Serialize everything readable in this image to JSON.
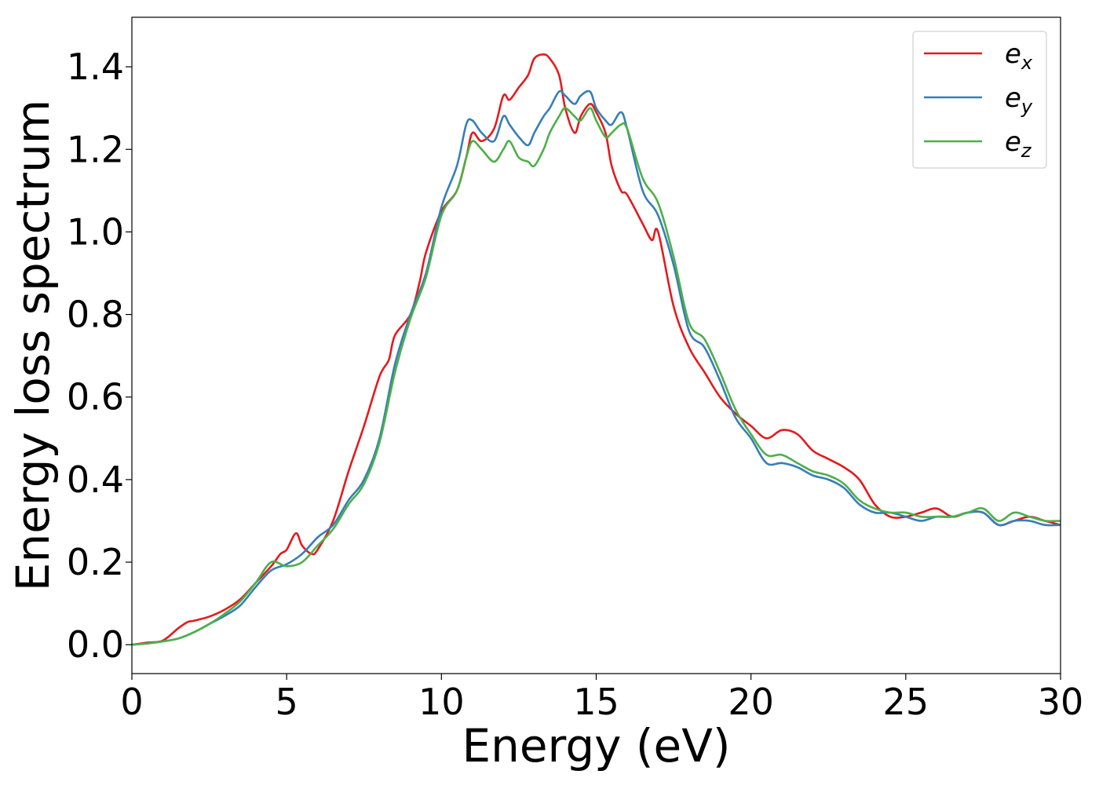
{
  "chart_data": {
    "type": "line",
    "title": "",
    "xlabel": "Energy (eV)",
    "ylabel": "Energy loss spectrum",
    "xlim": [
      0,
      30
    ],
    "ylim": [
      -0.07,
      1.52
    ],
    "xticks": [
      0,
      5,
      10,
      15,
      20,
      25,
      30
    ],
    "xtick_labels": [
      "0",
      "5",
      "10",
      "15",
      "20",
      "25",
      "30"
    ],
    "yticks": [
      0.0,
      0.2,
      0.4,
      0.6,
      0.8,
      1.0,
      1.2,
      1.4
    ],
    "ytick_labels": [
      "0.0",
      "0.2",
      "0.4",
      "0.6",
      "0.8",
      "1.0",
      "1.2",
      "1.4"
    ],
    "grid": false,
    "legend_position": "top-right",
    "series": [
      {
        "name": "e_x",
        "legend_base": "e",
        "legend_sub": "x",
        "color": "#e41a1c",
        "x": [
          0,
          0.5,
          1,
          1.5,
          1.8,
          2,
          2.5,
          3,
          3.5,
          4,
          4.5,
          4.8,
          5,
          5.3,
          5.5,
          5.8,
          6,
          6.5,
          7,
          7.5,
          8,
          8.3,
          8.5,
          9,
          9.3,
          9.5,
          10,
          10.5,
          10.8,
          11,
          11.3,
          11.7,
          12,
          12.2,
          12.5,
          12.8,
          13,
          13.3,
          13.5,
          13.8,
          14,
          14.3,
          14.5,
          14.8,
          15,
          15.3,
          15.5,
          15.8,
          16,
          16.5,
          16.8,
          17,
          17.5,
          18,
          18.5,
          19,
          19.5,
          20,
          20.5,
          21,
          21.5,
          22,
          22.5,
          23,
          23.5,
          24,
          24.5,
          25,
          25.5,
          26,
          26.5,
          27,
          27.5,
          28,
          28.5,
          29,
          29.5,
          30
        ],
        "y": [
          0.0,
          0.005,
          0.01,
          0.04,
          0.055,
          0.058,
          0.068,
          0.085,
          0.11,
          0.15,
          0.19,
          0.22,
          0.23,
          0.27,
          0.24,
          0.22,
          0.23,
          0.3,
          0.42,
          0.53,
          0.65,
          0.69,
          0.75,
          0.8,
          0.88,
          0.95,
          1.05,
          1.1,
          1.18,
          1.24,
          1.22,
          1.25,
          1.33,
          1.32,
          1.35,
          1.38,
          1.42,
          1.43,
          1.42,
          1.38,
          1.3,
          1.24,
          1.28,
          1.31,
          1.29,
          1.24,
          1.16,
          1.1,
          1.09,
          1.02,
          0.98,
          1.0,
          0.82,
          0.72,
          0.66,
          0.6,
          0.56,
          0.53,
          0.5,
          0.52,
          0.51,
          0.47,
          0.45,
          0.43,
          0.4,
          0.34,
          0.31,
          0.31,
          0.32,
          0.33,
          0.31,
          0.32,
          0.32,
          0.29,
          0.3,
          0.31,
          0.3,
          0.29
        ]
      },
      {
        "name": "e_y",
        "legend_base": "e",
        "legend_sub": "y",
        "color": "#377eb8",
        "x": [
          0,
          0.5,
          1,
          1.5,
          2,
          2.5,
          3,
          3.5,
          4,
          4.5,
          5,
          5.5,
          6,
          6.5,
          7,
          7.5,
          8,
          8.5,
          9,
          9.5,
          10,
          10.5,
          10.8,
          11,
          11.3,
          11.7,
          12,
          12.2,
          12.5,
          12.8,
          13,
          13.3,
          13.5,
          13.8,
          14,
          14.3,
          14.5,
          14.8,
          15,
          15.3,
          15.5,
          15.8,
          16,
          16.5,
          17,
          17.5,
          18,
          18.5,
          19,
          19.5,
          20,
          20.5,
          21,
          21.5,
          22,
          22.5,
          23,
          23.5,
          24,
          24.5,
          25,
          25.5,
          26,
          26.5,
          27,
          27.5,
          28,
          28.5,
          29,
          29.5,
          30
        ],
        "y": [
          0.0,
          0.003,
          0.008,
          0.015,
          0.03,
          0.05,
          0.07,
          0.095,
          0.14,
          0.18,
          0.195,
          0.22,
          0.26,
          0.29,
          0.35,
          0.4,
          0.5,
          0.68,
          0.8,
          0.9,
          1.06,
          1.16,
          1.26,
          1.27,
          1.24,
          1.22,
          1.28,
          1.26,
          1.23,
          1.21,
          1.24,
          1.28,
          1.3,
          1.34,
          1.33,
          1.31,
          1.33,
          1.34,
          1.3,
          1.27,
          1.26,
          1.29,
          1.25,
          1.1,
          1.04,
          0.92,
          0.76,
          0.72,
          0.64,
          0.55,
          0.5,
          0.44,
          0.44,
          0.43,
          0.41,
          0.4,
          0.38,
          0.34,
          0.32,
          0.32,
          0.31,
          0.3,
          0.31,
          0.31,
          0.32,
          0.32,
          0.29,
          0.3,
          0.3,
          0.29,
          0.29
        ]
      },
      {
        "name": "e_z",
        "legend_base": "e",
        "legend_sub": "z",
        "color": "#4daf4a",
        "x": [
          0,
          0.5,
          1,
          1.5,
          2,
          2.5,
          3,
          3.5,
          4,
          4.5,
          5,
          5.5,
          6,
          6.5,
          7,
          7.5,
          8,
          8.5,
          9,
          9.5,
          10,
          10.5,
          10.8,
          11,
          11.3,
          11.7,
          12,
          12.2,
          12.5,
          12.8,
          13,
          13.3,
          13.5,
          13.8,
          14,
          14.3,
          14.5,
          14.8,
          15,
          15.3,
          15.5,
          15.8,
          16,
          16.5,
          17,
          17.5,
          18,
          18.5,
          19,
          19.5,
          20,
          20.5,
          21,
          21.5,
          22,
          22.5,
          23,
          23.5,
          24,
          24.5,
          25,
          25.5,
          26,
          26.5,
          27,
          27.5,
          28,
          28.5,
          29,
          29.5,
          30
        ],
        "y": [
          0.0,
          0.003,
          0.008,
          0.015,
          0.03,
          0.05,
          0.075,
          0.105,
          0.15,
          0.2,
          0.19,
          0.2,
          0.24,
          0.28,
          0.34,
          0.39,
          0.49,
          0.66,
          0.79,
          0.89,
          1.04,
          1.1,
          1.18,
          1.22,
          1.2,
          1.17,
          1.2,
          1.22,
          1.18,
          1.17,
          1.16,
          1.2,
          1.24,
          1.28,
          1.3,
          1.28,
          1.27,
          1.3,
          1.27,
          1.23,
          1.24,
          1.26,
          1.25,
          1.13,
          1.07,
          0.94,
          0.78,
          0.74,
          0.66,
          0.57,
          0.51,
          0.46,
          0.46,
          0.44,
          0.42,
          0.41,
          0.39,
          0.35,
          0.33,
          0.32,
          0.32,
          0.31,
          0.31,
          0.31,
          0.32,
          0.33,
          0.3,
          0.32,
          0.31,
          0.3,
          0.3
        ]
      }
    ]
  }
}
